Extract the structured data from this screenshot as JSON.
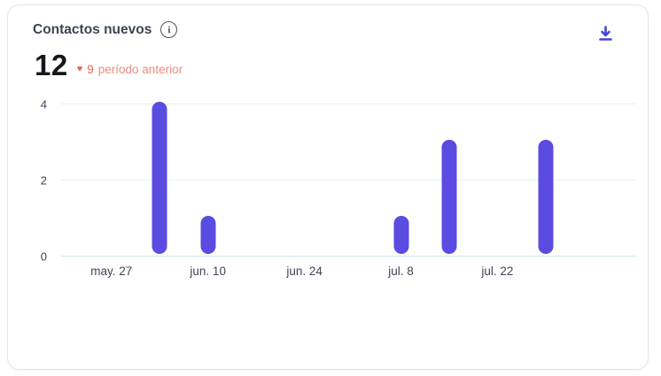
{
  "card": {
    "title": "Contactos nuevos"
  },
  "icons": {
    "info_glyph": "i",
    "heart_glyph": "♥"
  },
  "metric": {
    "value": "12",
    "delta_value": "9",
    "delta_label": "período anterior"
  },
  "colors": {
    "bar": "#5a4ce0",
    "download_icon": "#4744d6",
    "delta_red": "#ee5f4e",
    "grid": "#e3f2ef"
  },
  "chart_data": {
    "type": "bar",
    "title": "Contactos nuevos",
    "total": 12,
    "bars": [
      {
        "date": "jun. 3",
        "day": 7,
        "value": 4
      },
      {
        "date": "jun. 10",
        "day": 14,
        "value": 1
      },
      {
        "date": "jul. 8",
        "day": 42,
        "value": 1
      },
      {
        "date": "jul. 15",
        "day": 49,
        "value": 3
      },
      {
        "date": "jul. 29",
        "day": 63,
        "value": 3
      }
    ],
    "x_ticks": [
      {
        "label": "may. 27",
        "day": 0
      },
      {
        "label": "jun. 10",
        "day": 14
      },
      {
        "label": "jun. 24",
        "day": 28
      },
      {
        "label": "jul. 8",
        "day": 42
      },
      {
        "label": "jul. 22",
        "day": 56
      }
    ],
    "y_ticks": [
      0,
      2,
      4
    ],
    "axis": {
      "day_min": -7.3,
      "day_max": 76,
      "y_max": 4.3
    },
    "grid": true,
    "legend": false
  }
}
